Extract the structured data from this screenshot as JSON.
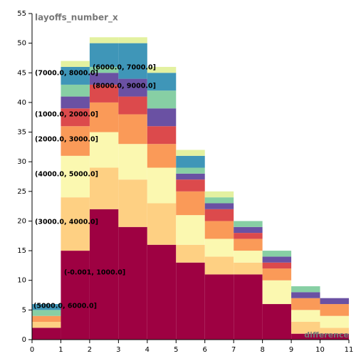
{
  "chart_data": {
    "type": "histogram",
    "title": "layoffs_number_x",
    "x_label": "difference",
    "bins": [
      0,
      1,
      2,
      3,
      4,
      5,
      6,
      7,
      8,
      9,
      10,
      11
    ],
    "xlim": [
      0,
      11
    ],
    "xticks": [
      0,
      1,
      2,
      3,
      4,
      5,
      6,
      7,
      8,
      9,
      10,
      11
    ],
    "ylim": [
      0,
      55
    ],
    "yticks": [
      0,
      5,
      10,
      15,
      20,
      25,
      30,
      35,
      40,
      45,
      50,
      55
    ],
    "stacked": true,
    "series": [
      {
        "name": "(-0.001, 1000.0]",
        "color": "#9e0142",
        "values": [
          2,
          15,
          22,
          19,
          16,
          13,
          11,
          11,
          6,
          1,
          1
        ]
      },
      {
        "name": "(3000.0, 4000.0]",
        "color": "#fed083",
        "values": [
          1,
          9,
          7,
          8,
          7,
          3,
          3,
          2,
          0,
          2,
          1
        ]
      },
      {
        "name": "(4000.0, 5000.0]",
        "color": "#fbf8b0",
        "values": [
          0,
          7,
          6,
          6,
          6,
          5,
          3,
          2,
          4,
          2,
          2
        ]
      },
      {
        "name": "(2000.0, 3000.0]",
        "color": "#fa9a58",
        "values": [
          1,
          5,
          5,
          5,
          4,
          4,
          3,
          2,
          2,
          2,
          2
        ]
      },
      {
        "name": "(1000.0, 2000.0]",
        "color": "#dc4a4c",
        "values": [
          0,
          3,
          3,
          3,
          3,
          2,
          2,
          1,
          1,
          0,
          0
        ]
      },
      {
        "name": "(8000.0, 9000.0]",
        "color": "#6a51a3",
        "values": [
          0,
          2,
          2,
          3,
          3,
          1,
          1,
          1,
          1,
          1,
          1
        ]
      },
      {
        "name": "(6000.0, 7000.0]",
        "color": "#87cfa4",
        "values": [
          1,
          2,
          1,
          0,
          3,
          1,
          1,
          1,
          1,
          1,
          0
        ]
      },
      {
        "name": "(7000.0, 8000.0]",
        "color": "#3f96b8",
        "values": [
          1,
          3,
          4,
          6,
          3,
          2,
          0,
          0,
          0,
          0,
          0
        ]
      },
      {
        "name": "(5000.0, 6000.0]",
        "color": "#e3f1a0",
        "values": [
          0,
          1,
          1,
          1,
          1,
          1,
          1,
          0,
          0,
          0,
          0
        ]
      }
    ]
  }
}
